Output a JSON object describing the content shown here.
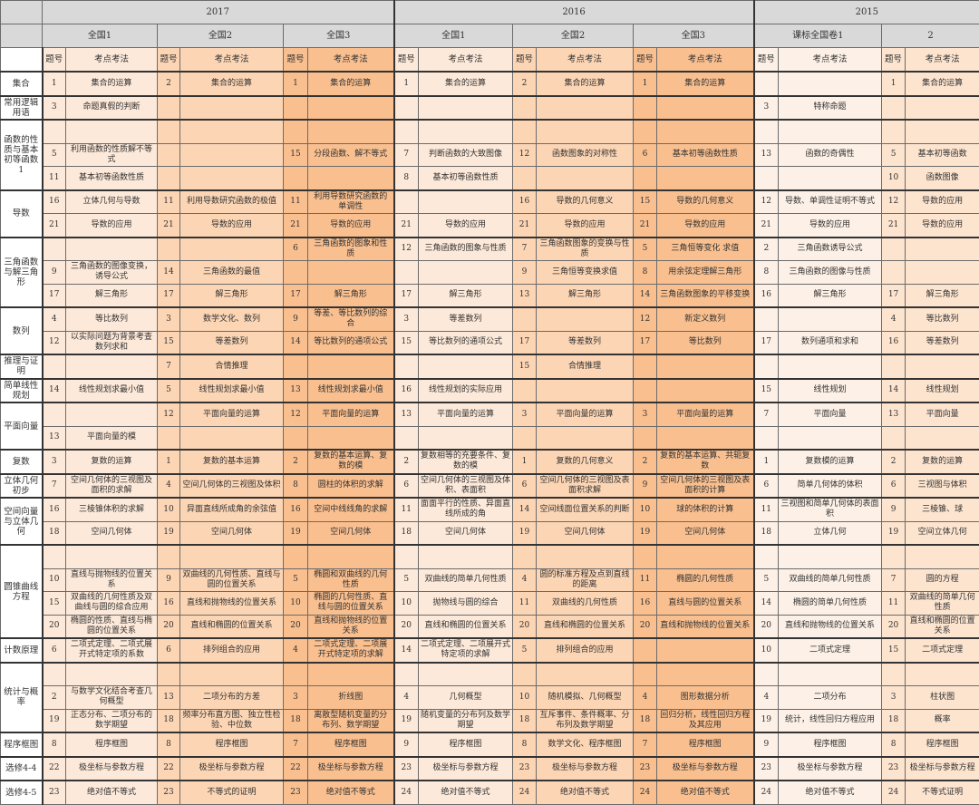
{
  "colors": {
    "header": "#d9d9d9",
    "light": "#fde9d9",
    "medium": "#fcd5b4",
    "dark": "#f9bf8f"
  },
  "years": [
    {
      "label": "2017",
      "span": 3
    },
    {
      "label": "2016",
      "span": 3
    },
    {
      "label": "2015",
      "span": 2
    }
  ],
  "papers": [
    "全国1",
    "全国2",
    "全国3",
    "全国1",
    "全国2",
    "全国3",
    "课标全国卷1",
    "2"
  ],
  "col_num": "题号",
  "col_topic": "考点考法",
  "rows": [
    {
      "c": "集合",
      "s": 1,
      "v": [
        "1",
        "集合的运算",
        "2",
        "集合的运算",
        "1",
        "集合的运算",
        "1",
        "集合的运算",
        "2",
        "集合的运算",
        "1",
        "集合的运算",
        "",
        "",
        "1",
        "集合的运算"
      ]
    },
    {
      "c": "常用逻辑用语",
      "s": 1,
      "v": [
        "3",
        "命题真假的判断",
        "",
        "",
        "",
        "",
        "",
        "",
        "",
        "",
        "",
        "",
        "3",
        "特称命题",
        "",
        ""
      ]
    },
    {
      "c": "函数的性质与基本初等函数1",
      "s": 3,
      "v": [
        "",
        "",
        "",
        "",
        "",
        "",
        "",
        "",
        "",
        "",
        "",
        "",
        "",
        "",
        "",
        ""
      ]
    },
    {
      "v": [
        "5",
        "利用函数的性质解不等式",
        "",
        "",
        "15",
        "分段函数、解不等式",
        "7",
        "判断函数的大致图像",
        "12",
        "函数图象的对称性",
        "6",
        "基本初等函数性质",
        "13",
        "函数的奇偶性",
        "5",
        "基本初等函数"
      ]
    },
    {
      "v": [
        "11",
        "基本初等函数性质",
        "",
        "",
        "",
        "",
        "8",
        "基本初等函数性质",
        "",
        "",
        "",
        "",
        "",
        "",
        "10",
        "函数图像"
      ]
    },
    {
      "c": "导数",
      "s": 2,
      "v": [
        "16",
        "立体几何与导数",
        "11",
        "利用导数研究函数的极值",
        "11",
        "利用导数研究函数的单调性",
        "",
        "",
        "16",
        "导数的几何意义",
        "15",
        "导数的几何意义",
        "12",
        "导数、单调性证明不等式",
        "12",
        "导数的应用"
      ]
    },
    {
      "v": [
        "21",
        "导数的应用",
        "21",
        "导数的应用",
        "21",
        "导数的应用",
        "21",
        "导数的应用",
        "21",
        "导数的应用",
        "21",
        "导数的应用",
        "21",
        "导数的应用",
        "21",
        "导数的应用"
      ]
    },
    {
      "c": "三角函数与解三角形",
      "s": 3,
      "v": [
        "",
        "",
        "",
        "",
        "6",
        "三角函数的图象和性质",
        "12",
        "三角函数的图象与性质",
        "7",
        "三角函数图象的变换与性质",
        "5",
        "三角恒等变化 求值",
        "2",
        "三角函数诱导公式",
        "",
        ""
      ]
    },
    {
      "v": [
        "9",
        "三角函数的图像变换，诱导公式",
        "14",
        "三角函数的最值",
        "",
        "",
        "",
        "",
        "9",
        "三角恒等变换求值",
        "8",
        "用余弦定理解三角形",
        "8",
        "三角函数的图像与性质",
        "",
        ""
      ]
    },
    {
      "v": [
        "17",
        "解三角形",
        "17",
        "解三角形",
        "17",
        "解三角形",
        "17",
        "解三角形",
        "13",
        "解三角形",
        "14",
        "三角函数图象的平移变换",
        "16",
        "解三角形",
        "17",
        "解三角形"
      ]
    },
    {
      "c": "数列",
      "s": 2,
      "v": [
        "4",
        "等比数列",
        "3",
        "数学文化、数列",
        "9",
        "等差、等比数列的综合",
        "3",
        "等差数列",
        "",
        "",
        "12",
        "新定义数列",
        "",
        "",
        "4",
        "等比数列"
      ]
    },
    {
      "v": [
        "12",
        "以实际问题为背景考查数列求和",
        "15",
        "等差数列",
        "14",
        "等比数列的通项公式",
        "15",
        "等比数列的通项公式",
        "17",
        "等差数列",
        "17",
        "等比数列",
        "17",
        "数列通项和求和",
        "16",
        "等差数列"
      ]
    },
    {
      "c": "推理与证明",
      "s": 1,
      "v": [
        "",
        "",
        "7",
        "合情推理",
        "",
        "",
        "",
        "",
        "15",
        "合情推理",
        "",
        "",
        "",
        "",
        "",
        ""
      ]
    },
    {
      "c": "简单线性规划",
      "s": 1,
      "v": [
        "14",
        "线性规划求最小值",
        "5",
        "线性规划求最小值",
        "13",
        "线性规划求最小值",
        "16",
        "线性规划的实际应用",
        "",
        "",
        "",
        "",
        "15",
        "线性规划",
        "14",
        "线性规划"
      ]
    },
    {
      "c": "平面向量",
      "s": 2,
      "v": [
        "",
        "",
        "12",
        "平面向量的运算",
        "12",
        "平面向量的运算",
        "13",
        "平面向量的运算",
        "3",
        "平面向量的运算",
        "3",
        "平面向量的运算",
        "7",
        "平面向量",
        "13",
        "平面向量"
      ]
    },
    {
      "v": [
        "13",
        "平面向量的模",
        "",
        "",
        "",
        "",
        "",
        "",
        "",
        "",
        "",
        "",
        "",
        "",
        "",
        ""
      ]
    },
    {
      "c": "复数",
      "s": 1,
      "v": [
        "3",
        "复数的运算",
        "1",
        "复数的基本运算",
        "2",
        "复数的基本运算、复数的模",
        "2",
        "复数相等的充要条件、复数的模",
        "1",
        "复数的几何意义",
        "2",
        "复数的基本运算、共轭复数",
        "1",
        "复数模的运算",
        "2",
        "复数的运算"
      ]
    },
    {
      "c": "立体几何初步",
      "s": 1,
      "v": [
        "7",
        "空间几何体的三视图及面积的求解",
        "4",
        "空间几何体的三视图及体积",
        "8",
        "圆柱的体积的求解",
        "6",
        "空间几何体的三视图及体积、表面积",
        "6",
        "空间几何体的三视图及表面积求解",
        "9",
        "空间几何体的三视图及表面积的计算",
        "6",
        "简单几何体的体积",
        "6",
        "三视图与体积"
      ]
    },
    {
      "c": "空间向量与立体几何",
      "s": 2,
      "v": [
        "16",
        "三棱锥体积的求解",
        "10",
        "异面直线所成角的余弦值",
        "16",
        "空间中线线角的求解",
        "11",
        "面面平行的性质、异面直线所成的角",
        "14",
        "空间线面位置关系的判断",
        "10",
        "球的体积的计算",
        "11",
        "三视图和简单几何体的表面积",
        "9",
        "三棱锥、球"
      ]
    },
    {
      "v": [
        "18",
        "空间几何体",
        "19",
        "空间几何体",
        "19",
        "空间几何体",
        "18",
        "空间几何体",
        "19",
        "空间几何体",
        "19",
        "空间几何体",
        "18",
        "立体几何",
        "19",
        "空间立体几何"
      ]
    },
    {
      "c": "圆锥曲线方程",
      "s": 4,
      "v": [
        "",
        "",
        "",
        "",
        "",
        "",
        "",
        "",
        "",
        "",
        "",
        "",
        "",
        "",
        "",
        ""
      ]
    },
    {
      "v": [
        "10",
        "直线与抛物线的位置关系",
        "9",
        "双曲线的几何性质、直线与圆的位置关系",
        "5",
        "椭圆和双曲线的几何性质",
        "5",
        "双曲线的简单几何性质",
        "4",
        "圆的标准方程及点到直线的距离",
        "11",
        "椭圆的几何性质",
        "5",
        "双曲线的简单几何性质",
        "7",
        "圆的方程"
      ]
    },
    {
      "v": [
        "15",
        "双曲线的几何性质及双曲线与圆的综合应用",
        "16",
        "直线和抛物线的位置关系",
        "10",
        "椭圆的几何性质、直线与圆的位置关系",
        "10",
        "抛物线与圆的综合",
        "11",
        "双曲线的几何性质",
        "16",
        "直线与圆的位置关系",
        "14",
        "椭圆的简单几何性质",
        "11",
        "双曲线的简单几何性质"
      ]
    },
    {
      "v": [
        "20",
        "椭圆的性质、直线与椭圆的位置关系",
        "20",
        "直线和椭圆的位置关系",
        "20",
        "直线和抛物线的位置关系",
        "20",
        "直线和椭圆的位置关系",
        "20",
        "直线和椭圆的位置关系",
        "20",
        "直线和抛物线的位置关系",
        "20",
        "直线和抛物线的位置关系",
        "20",
        "直线和椭圆的位置关系"
      ]
    },
    {
      "c": "计数原理",
      "s": 1,
      "v": [
        "6",
        "二项式定理、二项式展开式特定项的系数",
        "6",
        "排列组合的应用",
        "4",
        "二项式定理、二项展开式特定项的求解",
        "14",
        "二项式定理、二项展开式特定项的求解",
        "5",
        "排列组合的应用",
        "",
        "",
        "10",
        "二项式定理",
        "15",
        "二项式定理"
      ]
    },
    {
      "c": "统计与概率",
      "s": 3,
      "v": [
        "",
        "",
        "",
        "",
        "",
        "",
        "",
        "",
        "",
        "",
        "",
        "",
        "",
        "",
        "",
        ""
      ]
    },
    {
      "v": [
        "2",
        "与数学文化结合考查几何概型",
        "13",
        "二项分布的方差",
        "3",
        "折线图",
        "4",
        "几何概型",
        "10",
        "随机模拟、几何概型",
        "4",
        "图形数据分析",
        "4",
        "二项分布",
        "3",
        "柱状图"
      ]
    },
    {
      "v": [
        "19",
        "正态分布、二项分布的数学期望",
        "18",
        "频率分布直方图、独立性检验、中位数",
        "18",
        "离散型随机变量的分布列、数学期望",
        "19",
        "随机变量的分布列及数学期望",
        "18",
        "互斥事件、条件概率、分布列及数学期望",
        "18",
        "回归分析，线性回归方程及其应用",
        "19",
        "统计，线性回归方程应用",
        "18",
        "概率"
      ]
    },
    {
      "c": "程序框图",
      "s": 1,
      "v": [
        "8",
        "程序框图",
        "8",
        "程序框图",
        "7",
        "程序框图",
        "9",
        "程序框图",
        "8",
        "数学文化、程序框图",
        "7",
        "程序框图",
        "9",
        "程序框图",
        "8",
        "程序框图"
      ]
    },
    {
      "c": "选修4-4",
      "s": 1,
      "v": [
        "22",
        "极坐标与参数方程",
        "22",
        "极坐标与参数方程",
        "22",
        "极坐标与参数方程",
        "23",
        "极坐标与参数方程",
        "23",
        "极坐标与参数方程",
        "23",
        "极坐标与参数方程",
        "23",
        "极坐标与参数方程",
        "23",
        "极坐标与参数方程"
      ]
    },
    {
      "c": "选修4-5",
      "s": 1,
      "v": [
        "23",
        "绝对值不等式",
        "23",
        "不等式的证明",
        "23",
        "绝对值不等式",
        "24",
        "绝对值不等式",
        "24",
        "绝对值不等式",
        "24",
        "绝对值不等式",
        "24",
        "绝对值不等式",
        "24",
        "不等式证明"
      ]
    }
  ]
}
